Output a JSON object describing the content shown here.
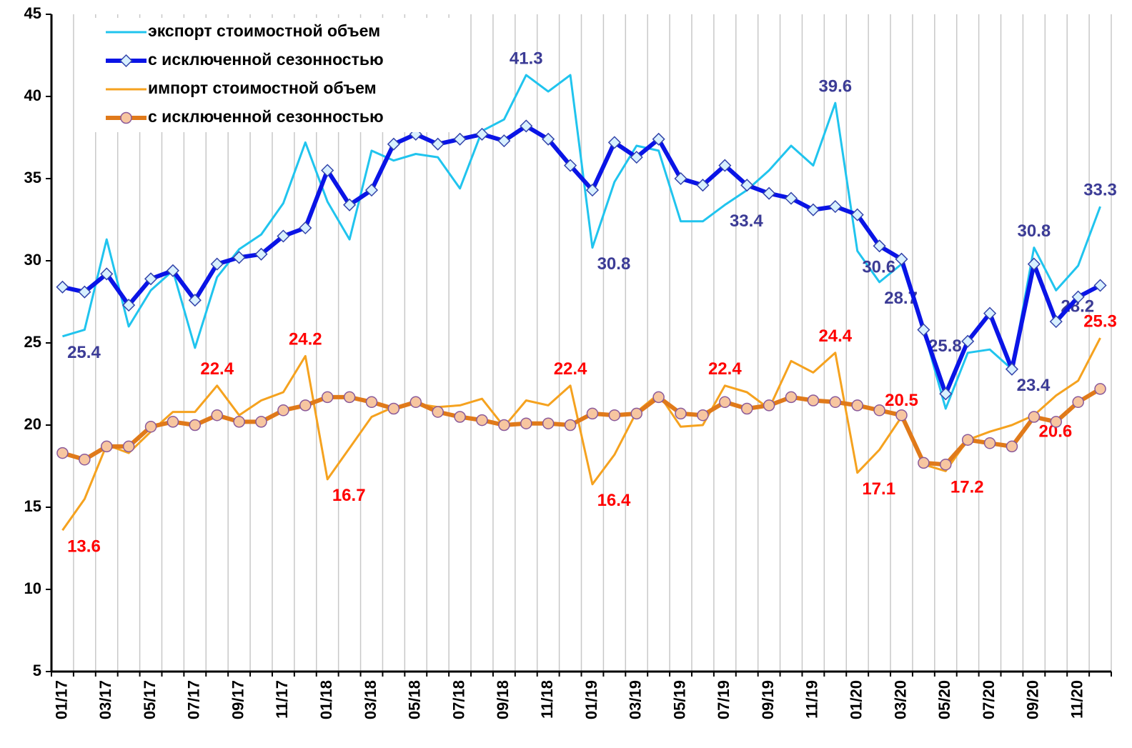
{
  "chart_data": {
    "type": "line",
    "categories": [
      "01/17",
      null,
      "03/17",
      null,
      "05/17",
      null,
      "07/17",
      null,
      "09/17",
      null,
      "11/17",
      null,
      "01/18",
      null,
      "03/18",
      null,
      "05/18",
      null,
      "07/18",
      null,
      "09/18",
      null,
      "11/18",
      null,
      "01/19",
      null,
      "03/19",
      null,
      "05/19",
      null,
      "07/19",
      null,
      "09/19",
      null,
      "11/19",
      null,
      "01/20",
      null,
      "03/20",
      null,
      "05/20",
      null,
      "07/20",
      null,
      "09/20",
      null,
      "11/20",
      null
    ],
    "series": [
      {
        "name": "экспорт стоимостной объем",
        "color": "#20c4ee",
        "marker": "none",
        "label_color": "#3c3c96",
        "values": [
          25.4,
          25.8,
          31.3,
          26.0,
          28.2,
          29.4,
          24.7,
          29.0,
          30.7,
          31.6,
          33.5,
          37.2,
          33.6,
          31.3,
          36.7,
          36.1,
          36.5,
          36.3,
          34.4,
          37.9,
          38.6,
          41.3,
          40.3,
          41.3,
          30.8,
          34.8,
          37.0,
          36.7,
          32.4,
          32.4,
          33.4,
          34.3,
          35.5,
          37.0,
          35.8,
          39.6,
          30.6,
          28.7,
          29.8,
          25.8,
          21.0,
          24.4,
          24.6,
          23.4,
          30.8,
          28.2,
          29.7,
          33.3
        ],
        "labels": [
          0,
          11,
          21,
          24,
          30,
          35,
          36,
          37,
          39,
          43,
          44,
          45,
          47
        ]
      },
      {
        "name": "с исключенной сезонностью",
        "color": "#0a14e6",
        "marker": "diamond",
        "marker_fill": "#d8f0ff",
        "values": [
          28.4,
          28.1,
          29.2,
          27.3,
          28.9,
          29.4,
          27.6,
          29.8,
          30.2,
          30.4,
          31.5,
          32.0,
          35.5,
          33.4,
          34.3,
          37.1,
          37.7,
          37.1,
          37.4,
          37.7,
          37.3,
          38.2,
          37.4,
          35.8,
          34.3,
          37.2,
          36.3,
          37.4,
          35.0,
          34.6,
          35.8,
          34.6,
          34.1,
          33.8,
          33.1,
          33.3,
          32.8,
          30.9,
          30.1,
          25.8,
          21.9,
          25.1,
          26.8,
          23.4,
          29.8,
          26.3,
          27.8,
          28.5
        ]
      },
      {
        "name": "импорт стоимостной объем",
        "color": "#f5a21f",
        "marker": "none",
        "label_color": "#ff0000",
        "values": [
          13.6,
          15.5,
          18.8,
          18.3,
          19.6,
          20.8,
          20.8,
          22.4,
          20.6,
          21.5,
          22.0,
          24.2,
          16.7,
          18.6,
          20.5,
          21.1,
          21.3,
          21.1,
          21.2,
          21.6,
          19.9,
          21.5,
          21.2,
          22.4,
          16.4,
          18.2,
          20.8,
          21.9,
          19.9,
          20.0,
          22.4,
          22.0,
          21.0,
          23.9,
          23.2,
          24.4,
          17.1,
          18.5,
          20.5,
          17.6,
          17.2,
          19.1,
          19.6,
          20.0,
          20.6,
          21.8,
          22.7,
          25.3
        ],
        "labels": [
          0,
          7,
          11,
          12,
          23,
          24,
          30,
          35,
          36,
          38,
          40,
          44,
          47
        ]
      },
      {
        "name": "с исключенной сезонностью",
        "color": "#e07a1a",
        "marker": "circle",
        "marker_fill": "#f7c6a0",
        "values": [
          18.3,
          17.9,
          18.7,
          18.7,
          19.9,
          20.2,
          20.0,
          20.6,
          20.2,
          20.2,
          20.9,
          21.2,
          21.7,
          21.7,
          21.4,
          21.0,
          21.4,
          20.8,
          20.5,
          20.3,
          20.0,
          20.1,
          20.1,
          20.0,
          20.7,
          20.6,
          20.7,
          21.7,
          20.7,
          20.6,
          21.4,
          21.0,
          21.2,
          21.7,
          21.5,
          21.4,
          21.2,
          20.9,
          20.6,
          17.7,
          17.6,
          19.1,
          18.9,
          18.7,
          20.5,
          20.2,
          21.4,
          22.2
        ]
      }
    ],
    "ylim": [
      5,
      45
    ],
    "yticks": [
      5,
      10,
      15,
      20,
      25,
      30,
      35,
      40,
      45
    ],
    "grid": "vertical",
    "legend": "upper left"
  }
}
